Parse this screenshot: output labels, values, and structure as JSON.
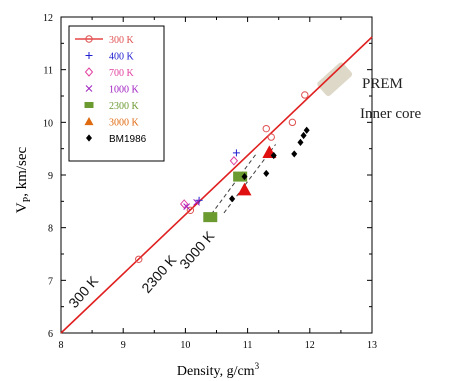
{
  "chart_data": {
    "type": "scatter",
    "title": "",
    "xlabel": "Density, g/cm",
    "xlabel_sup": "3",
    "ylabel": "V",
    "ylabel_sub": "P",
    "ylabel_rest": ", km/sec",
    "xlim": [
      8,
      13
    ],
    "ylim": [
      6,
      12
    ],
    "xticks": [
      "8",
      "9",
      "10",
      "11",
      "12",
      "13"
    ],
    "yticks": [
      "6",
      "7",
      "8",
      "9",
      "10",
      "11",
      "12"
    ],
    "legend_position": "top-left",
    "colors": {
      "fit_300": "#e02020",
      "s300": "#e05050",
      "s400": "#2020d0",
      "s700": "#e040a0",
      "s1000": "#a020c0",
      "s2300": "#6a9a30",
      "s3000": "#e06a10",
      "bm": "#000000",
      "prem": "#ddd8c8",
      "dashed": "#404040",
      "triangle_big": "#e01010"
    },
    "series": [
      {
        "name": "300 K",
        "marker": "open-circle",
        "points": [
          [
            9.25,
            7.4
          ],
          [
            10.08,
            8.33
          ],
          [
            11.3,
            9.88
          ],
          [
            11.38,
            9.72
          ],
          [
            11.72,
            10.0
          ],
          [
            11.92,
            10.52
          ]
        ]
      },
      {
        "name": "400 K",
        "marker": "plus",
        "points": [
          [
            10.22,
            8.52
          ],
          [
            10.82,
            9.42
          ]
        ]
      },
      {
        "name": "700 K",
        "marker": "open-diamond",
        "points": [
          [
            9.98,
            8.45
          ],
          [
            10.78,
            9.27
          ]
        ]
      },
      {
        "name": "1000 K",
        "marker": "x",
        "points": [
          [
            10.02,
            8.4
          ],
          [
            10.18,
            8.48
          ]
        ]
      },
      {
        "name": "2300 K",
        "marker": "filled-square",
        "points": [
          [
            10.4,
            8.2
          ],
          [
            10.88,
            8.97
          ]
        ]
      },
      {
        "name": "3000 K",
        "marker": "filled-triangle",
        "points": [
          [
            10.95,
            8.72
          ],
          [
            11.35,
            9.43
          ]
        ]
      },
      {
        "name": "BM1986",
        "marker": "filled-diamond",
        "points": [
          [
            10.75,
            8.55
          ],
          [
            10.95,
            8.97
          ],
          [
            11.3,
            9.03
          ],
          [
            11.42,
            9.37
          ],
          [
            11.75,
            9.4
          ],
          [
            11.85,
            9.62
          ],
          [
            11.9,
            9.75
          ],
          [
            11.95,
            9.85
          ]
        ]
      }
    ],
    "fit_line": {
      "label": "300 K",
      "from": [
        8,
        6.0
      ],
      "to": [
        13,
        11.62
      ]
    },
    "isotherm_lines": [
      {
        "label": "2300 K",
        "from": [
          10.35,
          8.15
        ],
        "to": [
          11.15,
          9.42
        ]
      },
      {
        "label": "3000 K",
        "from": [
          10.62,
          8.28
        ],
        "to": [
          11.45,
          9.58
        ]
      }
    ],
    "annotations": {
      "prem_line1": "PREM",
      "prem_line2": "Inner core",
      "prem_region": {
        "x": 12.4,
        "y": 10.82
      }
    }
  }
}
